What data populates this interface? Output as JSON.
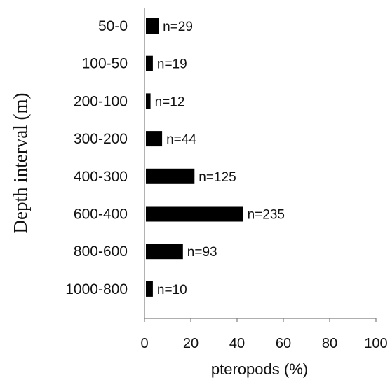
{
  "chart_data": {
    "type": "bar",
    "orientation": "horizontal",
    "title": "",
    "xlabel": "pteropods (%)",
    "ylabel": "Depth interval (m)",
    "xlim": [
      0,
      100
    ],
    "xticks": [
      "0",
      "20",
      "40",
      "60",
      "80",
      "100"
    ],
    "grid": false,
    "legend": "none",
    "categories": [
      "50-0",
      "100-50",
      "200-100",
      "300-200",
      "400-300",
      "600-400",
      "800-600",
      "1000-800"
    ],
    "values": [
      5.5,
      3,
      2,
      7,
      21,
      42,
      16,
      3
    ],
    "data_labels": [
      "n=29",
      "n=19",
      "n=12",
      "n=44",
      "n=125",
      "n=235",
      "n=93",
      "n=10"
    ],
    "bar_color": "#000000"
  }
}
